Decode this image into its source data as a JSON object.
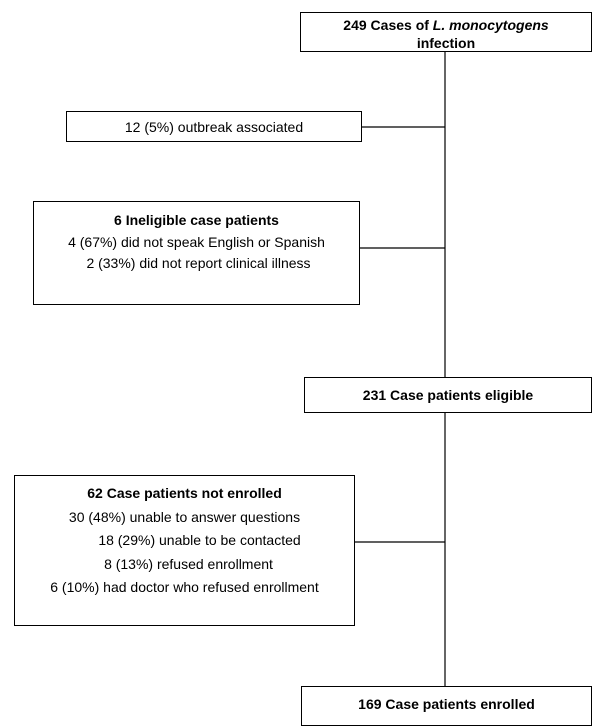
{
  "flow": {
    "total": {
      "part1": "249 Cases of ",
      "organism": "L. monocytogens",
      "part2": "infection"
    },
    "outbreak": "12 (5%) outbreak associated",
    "ineligible": {
      "title": "6 Ineligible case patients",
      "items": [
        "4 (67%) did not speak English or Spanish",
        "2 (33%) did not report clinical illness"
      ]
    },
    "eligible": "231 Case patients eligible",
    "not_enrolled": {
      "title": "62 Case patients not enrolled",
      "items": [
        "30 (48%) unable to answer questions",
        "18 (29%) unable to be contacted",
        "8 (13%) refused enrollment",
        "6 (10%) had doctor who refused enrollment"
      ]
    },
    "enrolled": "169 Case patients enrolled"
  }
}
